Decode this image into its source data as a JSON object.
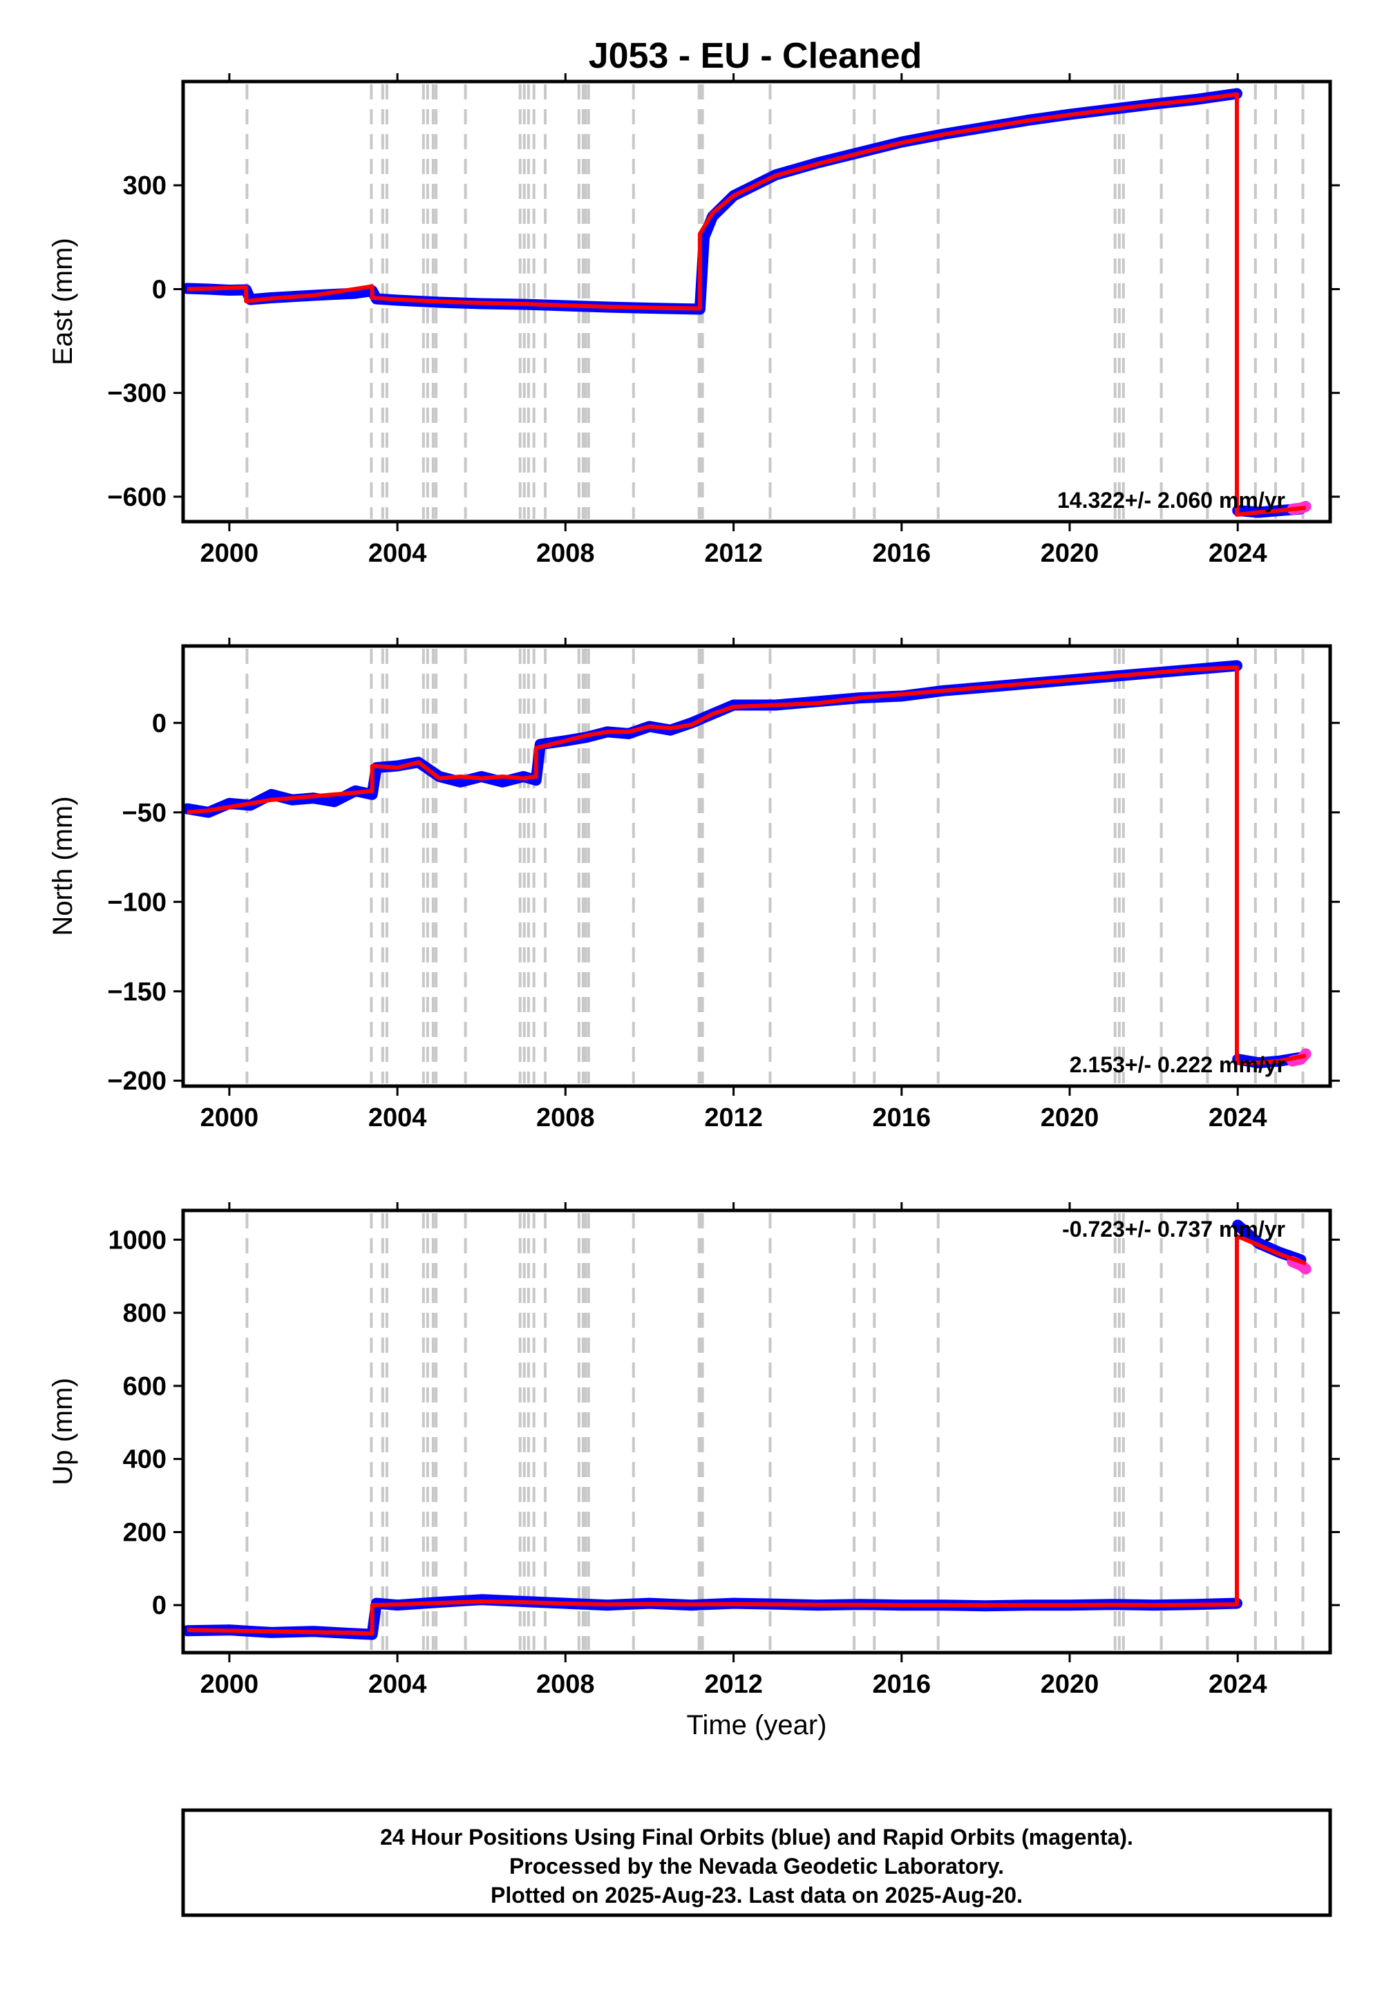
{
  "chart_data": [
    {
      "type": "scatter",
      "title": "J053  - EU - Cleaned",
      "ylabel": "East (mm)",
      "xlabel": "",
      "xlim": [
        1998.9,
        2026.2
      ],
      "ylim": [
        -672,
        600
      ],
      "xticks": [
        2000,
        2004,
        2008,
        2012,
        2016,
        2020,
        2024
      ],
      "xtick_labels": [
        "2000",
        "2004",
        "2008",
        "2012",
        "2016",
        "2020",
        "2024"
      ],
      "yticks": [
        -600,
        -300,
        0,
        300
      ],
      "ytick_labels": [
        "−600",
        "−300",
        "0",
        "300"
      ],
      "rate_label": "14.322+/- 2.060 mm/yr",
      "grid": false,
      "series": [
        {
          "color": "#0000ff",
          "style": "points",
          "x": [
            1999.0,
            1999.5,
            2000.0,
            2000.4,
            2000.5,
            2001.0,
            2002.0,
            2003.0,
            2003.4,
            2003.5,
            2004.0,
            2005.0,
            2006.0,
            2007.0,
            2008.0,
            2009.0,
            2010.0,
            2011.2,
            2011.3,
            2011.5,
            2012.0,
            2013.0,
            2014.0,
            2015.0,
            2016.0,
            2017.0,
            2018.0,
            2019.0,
            2020.0,
            2021.0,
            2022.0,
            2023.0,
            2023.98
          ],
          "y": [
            2,
            0,
            -3,
            -2,
            -30,
            -25,
            -18,
            -12,
            -5,
            -28,
            -32,
            -38,
            -42,
            -44,
            -48,
            -52,
            -55,
            -58,
            150,
            210,
            270,
            330,
            365,
            395,
            425,
            448,
            468,
            488,
            505,
            520,
            535,
            548,
            565
          ]
        },
        {
          "color": "#0000ff",
          "style": "points",
          "x": [
            2024.0,
            2024.5,
            2025.0,
            2025.5
          ],
          "y": [
            -640,
            -645,
            -640,
            -635
          ]
        },
        {
          "color": "#ff33cc",
          "style": "points",
          "x": [
            2025.3,
            2025.5,
            2025.62
          ],
          "y": [
            -636,
            -633,
            -628
          ]
        },
        {
          "color": "#ff0000",
          "style": "line",
          "x": [
            1999.0,
            2000.4,
            2000.4,
            2001.0,
            2002.0,
            2003.4,
            2003.4,
            2004.0,
            2005.0,
            2006.0,
            2007.0,
            2008.0,
            2009.0,
            2010.0,
            2011.2,
            2011.2,
            2011.5,
            2012.0,
            2013.0,
            2014.0,
            2015.0,
            2016.0,
            2017.0,
            2018.0,
            2019.0,
            2020.0,
            2021.0,
            2022.0,
            2023.0,
            2023.98,
            2023.98,
            2024.5,
            2025.0,
            2025.62
          ],
          "y": [
            0,
            5,
            -35,
            -27,
            -18,
            8,
            -25,
            -30,
            -36,
            -40,
            -43,
            -47,
            -51,
            -54,
            -56,
            160,
            220,
            270,
            328,
            362,
            393,
            423,
            447,
            467,
            487,
            504,
            519,
            534,
            547,
            563,
            -652,
            -645,
            -640,
            -632
          ]
        }
      ]
    },
    {
      "type": "scatter",
      "title": "",
      "ylabel": "North (mm)",
      "xlabel": "",
      "xlim": [
        1998.9,
        2026.2
      ],
      "ylim": [
        -203,
        43
      ],
      "xticks": [
        2000,
        2004,
        2008,
        2012,
        2016,
        2020,
        2024
      ],
      "xtick_labels": [
        "2000",
        "2004",
        "2008",
        "2012",
        "2016",
        "2020",
        "2024"
      ],
      "yticks": [
        -200,
        -150,
        -100,
        -50,
        0
      ],
      "ytick_labels": [
        "−200",
        "−150",
        "−100",
        "−50",
        "0"
      ],
      "rate_label": "2.153+/- 0.222 mm/yr",
      "grid": false,
      "series": [
        {
          "color": "#0000ff",
          "style": "points",
          "x": [
            1999.0,
            1999.5,
            2000.0,
            2000.5,
            2001.0,
            2001.5,
            2002.0,
            2002.5,
            2003.0,
            2003.4,
            2003.5,
            2004.0,
            2004.5,
            2005.0,
            2005.5,
            2006.0,
            2006.5,
            2007.0,
            2007.3,
            2007.4,
            2008.0,
            2008.5,
            2009.0,
            2009.5,
            2010.0,
            2010.5,
            2011.0,
            2011.5,
            2012.0,
            2013.0,
            2014.0,
            2015.0,
            2016.0,
            2017.0,
            2018.0,
            2019.0,
            2020.0,
            2021.0,
            2022.0,
            2023.0,
            2023.98
          ],
          "y": [
            -48,
            -50,
            -45,
            -46,
            -40,
            -43,
            -42,
            -44,
            -38,
            -40,
            -25,
            -24,
            -22,
            -30,
            -33,
            -30,
            -33,
            -30,
            -32,
            -12,
            -10,
            -8,
            -5,
            -6,
            -2,
            -4,
            0,
            5,
            10,
            10,
            12,
            14,
            15,
            18,
            20,
            22,
            24,
            26,
            28,
            30,
            32
          ]
        },
        {
          "color": "#0000ff",
          "style": "points",
          "x": [
            2024.0,
            2024.5,
            2025.0,
            2025.5
          ],
          "y": [
            -188,
            -190,
            -189,
            -187
          ]
        },
        {
          "color": "#ff33cc",
          "style": "points",
          "x": [
            2025.3,
            2025.5,
            2025.62
          ],
          "y": [
            -189,
            -188,
            -185
          ]
        },
        {
          "color": "#ff0000",
          "style": "line",
          "x": [
            1999.0,
            1999.5,
            2000.0,
            2000.5,
            2001.0,
            2001.5,
            2002.0,
            2002.5,
            2003.0,
            2003.4,
            2003.4,
            2004.0,
            2004.5,
            2005.0,
            2005.5,
            2006.0,
            2006.5,
            2007.0,
            2007.3,
            2007.3,
            2008.0,
            2008.5,
            2009.0,
            2009.5,
            2010.0,
            2010.5,
            2011.0,
            2011.5,
            2012.0,
            2013.0,
            2014.0,
            2015.0,
            2016.0,
            2017.0,
            2018.0,
            2019.0,
            2020.0,
            2021.0,
            2022.0,
            2023.0,
            2023.98,
            2023.98,
            2024.5,
            2025.0,
            2025.62
          ],
          "y": [
            -50,
            -49,
            -47,
            -45,
            -43,
            -42,
            -41,
            -40,
            -39,
            -38,
            -24,
            -25,
            -22,
            -31,
            -30,
            -31,
            -30,
            -31,
            -30,
            -14,
            -10,
            -7,
            -5,
            -5,
            -2,
            -3,
            -1,
            5,
            9,
            10,
            11,
            14,
            16,
            18,
            20,
            22,
            24,
            26,
            28,
            30,
            31,
            -190,
            -190,
            -189,
            -186
          ]
        }
      ]
    },
    {
      "type": "scatter",
      "title": "",
      "ylabel": "Up (mm)",
      "xlabel": "Time (year)",
      "xlim": [
        1998.9,
        2026.2
      ],
      "ylim": [
        -130,
        1080
      ],
      "xticks": [
        2000,
        2004,
        2008,
        2012,
        2016,
        2020,
        2024
      ],
      "xtick_labels": [
        "2000",
        "2004",
        "2008",
        "2012",
        "2016",
        "2020",
        "2024"
      ],
      "yticks": [
        0,
        200,
        400,
        600,
        800,
        1000
      ],
      "ytick_labels": [
        "0",
        "200",
        "400",
        "600",
        "800",
        "1000"
      ],
      "rate_label": "-0.723+/- 0.737 mm/yr",
      "grid": false,
      "series": [
        {
          "color": "#0000ff",
          "style": "points",
          "x": [
            1999.0,
            2000.0,
            2001.0,
            2002.0,
            2003.0,
            2003.4,
            2003.5,
            2004.0,
            2005.0,
            2006.0,
            2007.0,
            2008.0,
            2009.0,
            2010.0,
            2011.0,
            2012.0,
            2013.0,
            2014.0,
            2015.0,
            2016.0,
            2017.0,
            2018.0,
            2019.0,
            2020.0,
            2021.0,
            2022.0,
            2023.0,
            2023.98
          ],
          "y": [
            -70,
            -68,
            -75,
            -72,
            -78,
            -80,
            5,
            0,
            8,
            15,
            10,
            5,
            0,
            5,
            0,
            5,
            3,
            0,
            2,
            0,
            0,
            -2,
            0,
            0,
            2,
            0,
            2,
            5
          ]
        },
        {
          "color": "#0000ff",
          "style": "points",
          "x": [
            2024.0,
            2024.5,
            2025.0,
            2025.5
          ],
          "y": [
            1040,
            990,
            965,
            945
          ]
        },
        {
          "color": "#ff33cc",
          "style": "points",
          "x": [
            2025.3,
            2025.5,
            2025.62
          ],
          "y": [
            940,
            930,
            920
          ]
        },
        {
          "color": "#ff0000",
          "style": "line",
          "x": [
            1999.0,
            2000.0,
            2001.0,
            2002.0,
            2003.0,
            2003.4,
            2003.4,
            2004.0,
            2005.0,
            2006.0,
            2007.0,
            2008.0,
            2009.0,
            2010.0,
            2011.0,
            2012.0,
            2013.0,
            2014.0,
            2015.0,
            2016.0,
            2017.0,
            2018.0,
            2019.0,
            2020.0,
            2021.0,
            2022.0,
            2023.0,
            2023.98,
            2023.98,
            2024.5,
            2025.0,
            2025.62
          ],
          "y": [
            -68,
            -70,
            -72,
            -74,
            -76,
            -78,
            0,
            2,
            6,
            10,
            8,
            4,
            2,
            3,
            2,
            3,
            2,
            1,
            1,
            0,
            0,
            0,
            0,
            0,
            1,
            0,
            1,
            2,
            1010,
            985,
            960,
            935
          ]
        }
      ]
    }
  ],
  "event_years": [
    2000.42,
    2003.38,
    2003.65,
    2003.75,
    2004.62,
    2004.72,
    2004.85,
    2004.92,
    2005.62,
    2006.92,
    2007.02,
    2007.12,
    2007.25,
    2007.52,
    2008.32,
    2008.42,
    2008.48,
    2008.55,
    2009.62,
    2011.18,
    2011.22,
    2011.26,
    2012.87,
    2014.87,
    2015.35,
    2016.87,
    2021.08,
    2021.18,
    2021.28,
    2022.18,
    2023.28,
    2024.42,
    2024.9,
    2025.55
  ],
  "footer": {
    "line1": "24 Hour Positions Using Final Orbits (blue) and Rapid Orbits (magenta).",
    "line2": "Processed by the Nevada Geodetic Laboratory.",
    "line3": "Plotted on 2025-Aug-23. Last data on 2025-Aug-20."
  }
}
